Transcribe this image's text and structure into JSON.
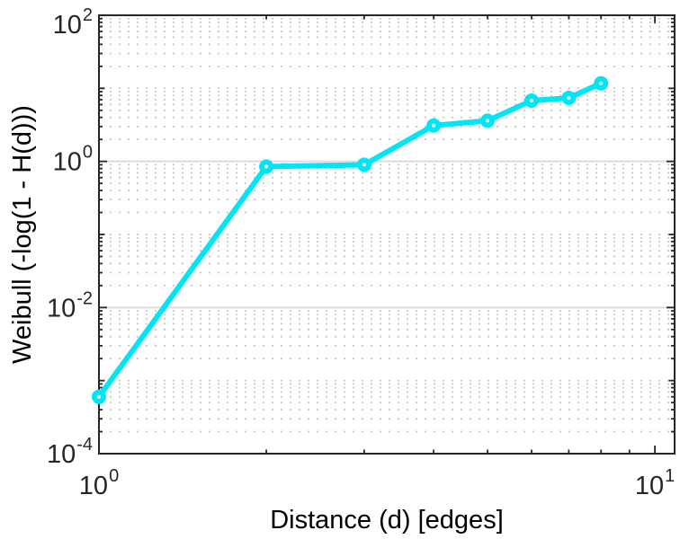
{
  "chart_data": {
    "type": "line",
    "title": "",
    "xlabel": "Distance (d) [edges]",
    "ylabel": "Weibull (-log(1 - H(d)))",
    "x": [
      1,
      2,
      3,
      4,
      5,
      6,
      7,
      8
    ],
    "values": [
      0.0006,
      0.85,
      0.9,
      3.1,
      3.6,
      6.8,
      7.4,
      11.7
    ],
    "xscale": "log",
    "yscale": "log",
    "xlim": [
      1,
      10.85
    ],
    "ylim": [
      0.0001,
      100
    ],
    "grid": {
      "y_major": "solid",
      "y_minor": "dotted",
      "x_grid": "off"
    },
    "legend": "none",
    "marker": "o",
    "line_color": "#00e6f6"
  },
  "axes": {
    "x_tick_labels": [
      {
        "base": "10",
        "exp": "0",
        "value": 1
      },
      {
        "base": "10",
        "exp": "1",
        "value": 10
      }
    ],
    "y_tick_labels": [
      {
        "base": "10",
        "exp": "2",
        "value": 100
      },
      {
        "base": "10",
        "exp": "0",
        "value": 1
      },
      {
        "base": "10",
        "exp": "-2",
        "value": 0.01
      },
      {
        "base": "10",
        "exp": "-4",
        "value": 0.0001
      }
    ],
    "y_unlabeled_decades": [
      10,
      0.1,
      0.001
    ]
  },
  "colors": {
    "line": "#00e6f6",
    "marker_fill": "#ffffff",
    "axis": "#262626",
    "text": "#262626",
    "grid_major": "#dcdcdc",
    "grid_minor": "#c9c9c9",
    "background": "#ffffff"
  }
}
